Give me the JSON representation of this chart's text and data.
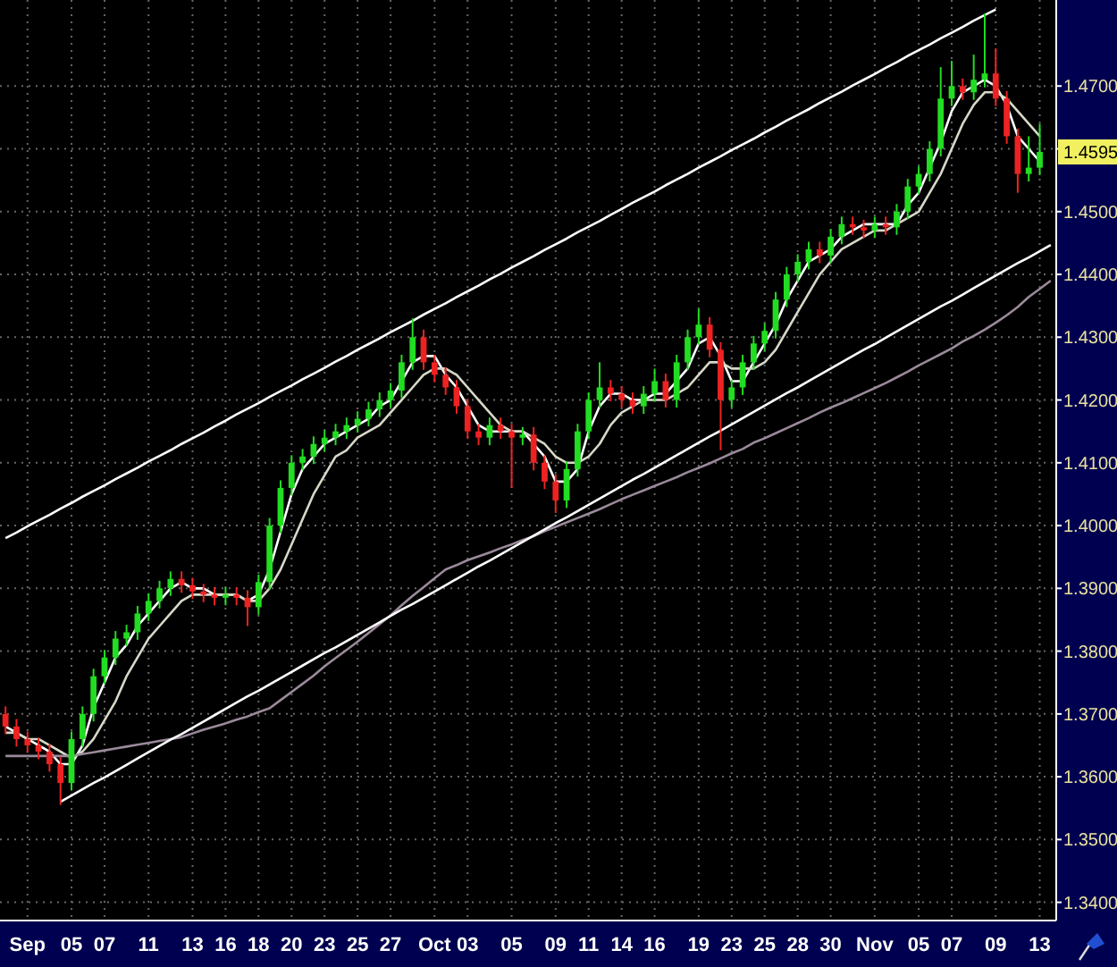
{
  "chart_data": {
    "type": "candlestick",
    "categories": [
      null,
      null,
      "Sep",
      null,
      null,
      null,
      "05",
      null,
      null,
      "07",
      null,
      null,
      null,
      "11",
      null,
      null,
      null,
      "13",
      null,
      null,
      "16",
      null,
      null,
      "18",
      null,
      null,
      "20",
      null,
      null,
      "23",
      null,
      null,
      "25",
      null,
      null,
      "27",
      null,
      null,
      null,
      "Oct",
      null,
      null,
      "03",
      null,
      null,
      null,
      "05",
      null,
      null,
      null,
      "09",
      null,
      null,
      "11",
      null,
      null,
      "14",
      null,
      null,
      "16",
      null,
      null,
      null,
      "19",
      null,
      null,
      "23",
      null,
      null,
      "25",
      null,
      null,
      "28",
      null,
      null,
      "30",
      null,
      null,
      null,
      "Nov",
      null,
      null,
      null,
      "05",
      null,
      null,
      "07",
      null,
      null,
      null,
      "09",
      null,
      null,
      null,
      "13",
      null
    ],
    "ylim": [
      1.3371,
      1.4837
    ],
    "yticks": [
      {
        "value": 1.34,
        "label": "1.3400"
      },
      {
        "value": 1.35,
        "label": "1.3500"
      },
      {
        "value": 1.36,
        "label": "1.3600"
      },
      {
        "value": 1.37,
        "label": "1.3700"
      },
      {
        "value": 1.38,
        "label": "1.3800"
      },
      {
        "value": 1.39,
        "label": "1.3900"
      },
      {
        "value": 1.4,
        "label": "1.4000"
      },
      {
        "value": 1.41,
        "label": "1.4100"
      },
      {
        "value": 1.42,
        "label": "1.4200"
      },
      {
        "value": 1.43,
        "label": "1.4300"
      },
      {
        "value": 1.44,
        "label": "1.4400"
      },
      {
        "value": 1.45,
        "label": "1.4500"
      },
      {
        "value": 1.46,
        "label": null
      },
      {
        "value": 1.47,
        "label": "1.4700"
      }
    ],
    "grid": true,
    "annotations": [
      {
        "text": "1.4595",
        "y": 1.4595
      }
    ],
    "series": [
      {
        "type": "candlestick",
        "ohlc": [
          [
            1.37,
            1.3712,
            1.3668,
            1.368
          ],
          [
            1.368,
            1.3692,
            1.3648,
            1.366
          ],
          [
            1.366,
            1.3672,
            1.3638,
            1.365
          ],
          [
            1.365,
            1.3662,
            1.3628,
            1.364
          ],
          [
            1.364,
            1.3652,
            1.3608,
            1.362
          ],
          [
            1.362,
            1.3632,
            1.3555,
            1.359
          ],
          [
            1.359,
            1.3672,
            1.3578,
            1.366
          ],
          [
            1.366,
            1.3712,
            1.3648,
            1.37
          ],
          [
            1.37,
            1.3772,
            1.3688,
            1.376
          ],
          [
            1.376,
            1.3802,
            1.3748,
            1.379
          ],
          [
            1.379,
            1.3832,
            1.3778,
            1.382
          ],
          [
            1.382,
            1.3842,
            1.3808,
            1.383
          ],
          [
            1.383,
            1.3872,
            1.3818,
            1.386
          ],
          [
            1.386,
            1.3892,
            1.3848,
            1.388
          ],
          [
            1.388,
            1.3912,
            1.3868,
            1.39
          ],
          [
            1.39,
            1.3927,
            1.3888,
            1.3915
          ],
          [
            1.3915,
            1.3927,
            1.3893,
            1.3905
          ],
          [
            1.3905,
            1.3917,
            1.3883,
            1.3895
          ],
          [
            1.3895,
            1.3907,
            1.3878,
            1.389
          ],
          [
            1.389,
            1.3902,
            1.3873,
            1.3885
          ],
          [
            1.3885,
            1.3902,
            1.3873,
            1.389
          ],
          [
            1.389,
            1.3902,
            1.3873,
            1.3885
          ],
          [
            1.3885,
            1.3897,
            1.384,
            1.387
          ],
          [
            1.387,
            1.3922,
            1.3858,
            1.391
          ],
          [
            1.391,
            1.4012,
            1.3898,
            1.4
          ],
          [
            1.4,
            1.4072,
            1.3988,
            1.406
          ],
          [
            1.406,
            1.4112,
            1.4048,
            1.41
          ],
          [
            1.41,
            1.4122,
            1.4088,
            1.411
          ],
          [
            1.411,
            1.4142,
            1.4098,
            1.413
          ],
          [
            1.413,
            1.4152,
            1.4118,
            1.414
          ],
          [
            1.414,
            1.4162,
            1.4128,
            1.415
          ],
          [
            1.415,
            1.4172,
            1.4138,
            1.416
          ],
          [
            1.416,
            1.4182,
            1.4148,
            1.417
          ],
          [
            1.417,
            1.4197,
            1.4158,
            1.4185
          ],
          [
            1.4185,
            1.4212,
            1.4173,
            1.42
          ],
          [
            1.42,
            1.4227,
            1.4188,
            1.4215
          ],
          [
            1.4215,
            1.4272,
            1.4203,
            1.426
          ],
          [
            1.426,
            1.433,
            1.4248,
            1.43
          ],
          [
            1.43,
            1.4312,
            1.4248,
            1.426
          ],
          [
            1.426,
            1.4272,
            1.4228,
            1.424
          ],
          [
            1.424,
            1.4252,
            1.4208,
            1.422
          ],
          [
            1.422,
            1.4232,
            1.4178,
            1.419
          ],
          [
            1.419,
            1.4202,
            1.4138,
            1.415
          ],
          [
            1.415,
            1.4162,
            1.4128,
            1.414
          ],
          [
            1.414,
            1.4172,
            1.4128,
            1.416
          ],
          [
            1.416,
            1.4172,
            1.4138,
            1.415
          ],
          [
            1.415,
            1.4162,
            1.406,
            1.414
          ],
          [
            1.414,
            1.4157,
            1.4128,
            1.4145
          ],
          [
            1.4145,
            1.4157,
            1.4088,
            1.41
          ],
          [
            1.41,
            1.4112,
            1.4058,
            1.407
          ],
          [
            1.407,
            1.4082,
            1.402,
            1.404
          ],
          [
            1.404,
            1.4102,
            1.4028,
            1.409
          ],
          [
            1.409,
            1.4162,
            1.4078,
            1.415
          ],
          [
            1.415,
            1.4212,
            1.4138,
            1.42
          ],
          [
            1.42,
            1.426,
            1.4188,
            1.422
          ],
          [
            1.422,
            1.4232,
            1.4198,
            1.421
          ],
          [
            1.421,
            1.4222,
            1.4188,
            1.42
          ],
          [
            1.42,
            1.4212,
            1.4178,
            1.419
          ],
          [
            1.419,
            1.4222,
            1.4178,
            1.421
          ],
          [
            1.421,
            1.425,
            1.4198,
            1.423
          ],
          [
            1.423,
            1.4242,
            1.4188,
            1.42
          ],
          [
            1.42,
            1.4272,
            1.4188,
            1.426
          ],
          [
            1.426,
            1.4312,
            1.4248,
            1.43
          ],
          [
            1.43,
            1.4345,
            1.4288,
            1.432
          ],
          [
            1.432,
            1.4332,
            1.4268,
            1.428
          ],
          [
            1.428,
            1.4292,
            1.412,
            1.42
          ],
          [
            1.42,
            1.4232,
            1.4188,
            1.422
          ],
          [
            1.422,
            1.4272,
            1.4208,
            1.426
          ],
          [
            1.426,
            1.4302,
            1.4248,
            1.429
          ],
          [
            1.429,
            1.4322,
            1.4278,
            1.431
          ],
          [
            1.431,
            1.4372,
            1.4298,
            1.436
          ],
          [
            1.436,
            1.4412,
            1.4348,
            1.44
          ],
          [
            1.44,
            1.4432,
            1.4388,
            1.442
          ],
          [
            1.442,
            1.4452,
            1.4408,
            1.444
          ],
          [
            1.444,
            1.4452,
            1.4418,
            1.443
          ],
          [
            1.443,
            1.4472,
            1.4418,
            1.446
          ],
          [
            1.446,
            1.4492,
            1.4448,
            1.448
          ],
          [
            1.448,
            1.4492,
            1.4463,
            1.4475
          ],
          [
            1.4475,
            1.4487,
            1.4458,
            1.447
          ],
          [
            1.447,
            1.4492,
            1.4458,
            1.448
          ],
          [
            1.448,
            1.4492,
            1.4463,
            1.4475
          ],
          [
            1.4475,
            1.4512,
            1.4463,
            1.45
          ],
          [
            1.45,
            1.4552,
            1.4488,
            1.454
          ],
          [
            1.454,
            1.4572,
            1.4528,
            1.456
          ],
          [
            1.456,
            1.4612,
            1.4548,
            1.46
          ],
          [
            1.46,
            1.473,
            1.4588,
            1.468
          ],
          [
            1.468,
            1.474,
            1.4668,
            1.47
          ],
          [
            1.47,
            1.4712,
            1.4678,
            1.469
          ],
          [
            1.469,
            1.475,
            1.4678,
            1.471
          ],
          [
            1.471,
            1.4815,
            1.4698,
            1.472
          ],
          [
            1.472,
            1.476,
            1.4668,
            1.468
          ],
          [
            1.468,
            1.4692,
            1.4608,
            1.462
          ],
          [
            1.462,
            1.4632,
            1.453,
            1.456
          ],
          [
            1.456,
            1.462,
            1.4548,
            1.457
          ],
          [
            1.457,
            1.464,
            1.4558,
            1.4595
          ],
          null
        ],
        "colors": [
          "#ee2222",
          "#ee2222",
          "#ee2222",
          "#ee2222",
          "#ee2222",
          "#ee2222",
          "#22dd22",
          "#22dd22",
          "#22dd22",
          "#22dd22",
          "#22dd22",
          "#22dd22",
          "#22dd22",
          "#22dd22",
          "#22dd22",
          "#22dd22",
          "#ee2222",
          "#ee2222",
          "#ee2222",
          "#ee2222",
          "#22dd22",
          "#ee2222",
          "#ee2222",
          "#22dd22",
          "#22dd22",
          "#22dd22",
          "#22dd22",
          "#22dd22",
          "#22dd22",
          "#22dd22",
          "#22dd22",
          "#22dd22",
          "#22dd22",
          "#22dd22",
          "#22dd22",
          "#22dd22",
          "#22dd22",
          "#22dd22",
          "#ee2222",
          "#ee2222",
          "#ee2222",
          "#ee2222",
          "#ee2222",
          "#ee2222",
          "#22dd22",
          "#ee2222",
          "#ee2222",
          "#22dd22",
          "#ee2222",
          "#ee2222",
          "#ee2222",
          "#22dd22",
          "#22dd22",
          "#22dd22",
          "#22dd22",
          "#ee2222",
          "#ee2222",
          "#ee2222",
          "#22dd22",
          "#22dd22",
          "#ee2222",
          "#22dd22",
          "#22dd22",
          "#22dd22",
          "#ee2222",
          "#ee2222",
          "#22dd22",
          "#22dd22",
          "#22dd22",
          "#22dd22",
          "#22dd22",
          "#22dd22",
          "#22dd22",
          "#22dd22",
          "#ee2222",
          "#22dd22",
          "#22dd22",
          "#ee2222",
          "#ee2222",
          "#22dd22",
          "#ee2222",
          "#22dd22",
          "#22dd22",
          "#22dd22",
          "#22dd22",
          "#22dd22",
          "#22dd22",
          "#ee2222",
          "#22dd22",
          "#22dd22",
          "#ee2222",
          "#ee2222",
          "#ee2222",
          "#22dd22",
          "#22dd22",
          null
        ]
      },
      {
        "type": "line",
        "color": "#ffffff",
        "values": [
          1.368,
          1.367,
          1.366,
          1.365,
          1.364,
          1.362,
          1.362,
          1.365,
          1.371,
          1.375,
          1.379,
          1.381,
          1.384,
          1.386,
          1.388,
          1.39,
          1.391,
          1.39,
          1.39,
          1.389,
          1.389,
          1.389,
          1.388,
          1.389,
          1.393,
          1.399,
          1.405,
          1.409,
          1.411,
          1.413,
          1.414,
          1.415,
          1.416,
          1.417,
          1.419,
          1.42,
          1.423,
          1.426,
          1.427,
          1.427,
          1.424,
          1.422,
          1.419,
          1.416,
          1.415,
          1.415,
          1.415,
          1.415,
          1.413,
          1.411,
          1.407,
          1.407,
          1.409,
          1.415,
          1.419,
          1.421,
          1.421,
          1.42,
          1.42,
          1.421,
          1.421,
          1.423,
          1.425,
          1.429,
          1.43,
          1.427,
          1.423,
          1.423,
          1.426,
          1.429,
          1.432,
          1.436,
          1.439,
          1.442,
          1.443,
          1.444,
          1.446,
          1.447,
          1.448,
          1.448,
          1.448,
          1.448,
          1.451,
          1.453,
          1.457,
          1.461,
          1.466,
          1.469,
          1.47,
          1.471,
          1.47,
          1.467,
          1.462,
          1.46,
          1.458,
          null
        ]
      },
      {
        "type": "line",
        "color": "#d8d8c8",
        "values": [
          1.367,
          1.367,
          1.366,
          1.366,
          1.365,
          1.364,
          1.363,
          1.364,
          1.366,
          1.369,
          1.372,
          1.376,
          1.379,
          1.382,
          1.384,
          1.386,
          1.388,
          1.389,
          1.389,
          1.389,
          1.389,
          1.389,
          1.388,
          1.388,
          1.39,
          1.393,
          1.397,
          1.401,
          1.405,
          1.408,
          1.411,
          1.412,
          1.414,
          1.415,
          1.416,
          1.418,
          1.42,
          1.422,
          1.424,
          1.425,
          1.425,
          1.424,
          1.422,
          1.42,
          1.418,
          1.416,
          1.415,
          1.415,
          1.414,
          1.413,
          1.411,
          1.41,
          1.41,
          1.411,
          1.413,
          1.416,
          1.418,
          1.419,
          1.42,
          1.42,
          1.42,
          1.421,
          1.422,
          1.424,
          1.426,
          1.426,
          1.425,
          1.425,
          1.425,
          1.426,
          1.428,
          1.431,
          1.434,
          1.437,
          1.44,
          1.442,
          1.444,
          1.445,
          1.446,
          1.447,
          1.447,
          1.448,
          1.449,
          1.45,
          1.453,
          1.456,
          1.46,
          1.464,
          1.467,
          1.469,
          1.469,
          1.468,
          1.466,
          1.464,
          1.462,
          null
        ]
      },
      {
        "type": "line",
        "color": "#9a8a9a",
        "values": [
          1.3633,
          1.3633,
          1.3633,
          1.3633,
          1.3633,
          1.3633,
          1.3633,
          1.3636,
          1.3639,
          1.3642,
          1.3645,
          1.3648,
          1.3651,
          1.3654,
          1.3657,
          1.366,
          1.3663,
          1.3669,
          1.3675,
          1.368,
          1.3685,
          1.3691,
          1.3696,
          1.3703,
          1.3709,
          1.3722,
          1.3735,
          1.3748,
          1.3761,
          1.3776,
          1.3789,
          1.3802,
          1.3815,
          1.3829,
          1.3843,
          1.3857,
          1.3873,
          1.3888,
          1.3902,
          1.3916,
          1.393,
          1.3937,
          1.3945,
          1.3951,
          1.3957,
          1.3964,
          1.397,
          1.3977,
          1.3983,
          1.3991,
          1.3998,
          1.4005,
          1.4012,
          1.4019,
          1.4026,
          1.4034,
          1.4042,
          1.4049,
          1.4056,
          1.4063,
          1.407,
          1.4077,
          1.4085,
          1.4092,
          1.4099,
          1.4107,
          1.4115,
          1.4122,
          1.4132,
          1.4139,
          1.4147,
          1.4155,
          1.4163,
          1.4171,
          1.418,
          1.4188,
          1.4195,
          1.4203,
          1.4211,
          1.4219,
          1.4227,
          1.4236,
          1.4245,
          1.4255,
          1.4264,
          1.4273,
          1.4282,
          1.4293,
          1.4302,
          1.4312,
          1.4323,
          1.4335,
          1.4348,
          1.4364,
          1.4377,
          1.439
        ]
      },
      {
        "type": "line",
        "color": "#ffffff",
        "values": [
          1.398,
          1.3989,
          1.3999,
          1.4008,
          1.4017,
          1.4027,
          1.4036,
          1.4046,
          1.4055,
          1.4064,
          1.4074,
          1.4083,
          1.4092,
          1.4102,
          1.4111,
          1.412,
          1.413,
          1.4139,
          1.4148,
          1.4158,
          1.4167,
          1.4177,
          1.4186,
          1.4195,
          1.4205,
          1.4214,
          1.4223,
          1.4233,
          1.4242,
          1.4251,
          1.4261,
          1.427,
          1.428,
          1.4289,
          1.4298,
          1.4308,
          1.4317,
          1.4326,
          1.4336,
          1.4345,
          1.4354,
          1.4364,
          1.4373,
          1.4382,
          1.4392,
          1.4401,
          1.4411,
          1.442,
          1.4429,
          1.4439,
          1.4448,
          1.4457,
          1.4467,
          1.4476,
          1.4485,
          1.4495,
          1.4504,
          1.4514,
          1.4523,
          1.4532,
          1.4542,
          1.4551,
          1.456,
          1.457,
          1.4579,
          1.4588,
          1.4598,
          1.4607,
          1.4616,
          1.4626,
          1.4635,
          1.4645,
          1.4654,
          1.4663,
          1.4673,
          1.4682,
          1.4691,
          1.4701,
          1.471,
          1.4719,
          1.4729,
          1.4738,
          1.4748,
          1.4757,
          1.4766,
          1.4776,
          1.4785,
          1.4794,
          1.4804,
          1.4813,
          1.4822,
          null,
          null,
          null,
          null,
          null
        ]
      },
      {
        "type": "line",
        "color": "#ffffff",
        "values": [
          null,
          null,
          null,
          null,
          null,
          1.356,
          1.357,
          1.358,
          1.359,
          1.3599,
          1.3609,
          1.3619,
          1.3629,
          1.3639,
          1.3649,
          1.3659,
          1.3668,
          1.3678,
          1.3688,
          1.3698,
          1.3708,
          1.3718,
          1.3728,
          1.3737,
          1.3747,
          1.3757,
          1.3767,
          1.3777,
          1.3787,
          1.3797,
          1.3806,
          1.3816,
          1.3826,
          1.3836,
          1.3846,
          1.3856,
          1.3866,
          1.3875,
          1.3885,
          1.3895,
          1.3905,
          1.3915,
          1.3925,
          1.3935,
          1.3944,
          1.3954,
          1.3964,
          1.3974,
          1.3984,
          1.3994,
          1.4004,
          1.4013,
          1.4023,
          1.4033,
          1.4043,
          1.4053,
          1.4063,
          1.4073,
          1.4082,
          1.4092,
          1.4102,
          1.4112,
          1.4122,
          1.4132,
          1.4142,
          1.4151,
          1.4161,
          1.4171,
          1.4181,
          1.4191,
          1.4201,
          1.4211,
          1.422,
          1.423,
          1.424,
          1.425,
          1.426,
          1.427,
          1.428,
          1.4289,
          1.4299,
          1.4309,
          1.4319,
          1.4329,
          1.4339,
          1.4349,
          1.4358,
          1.4368,
          1.4378,
          1.4388,
          1.4398,
          1.4408,
          1.4418,
          1.4427,
          1.4437,
          1.4447
        ]
      }
    ]
  }
}
